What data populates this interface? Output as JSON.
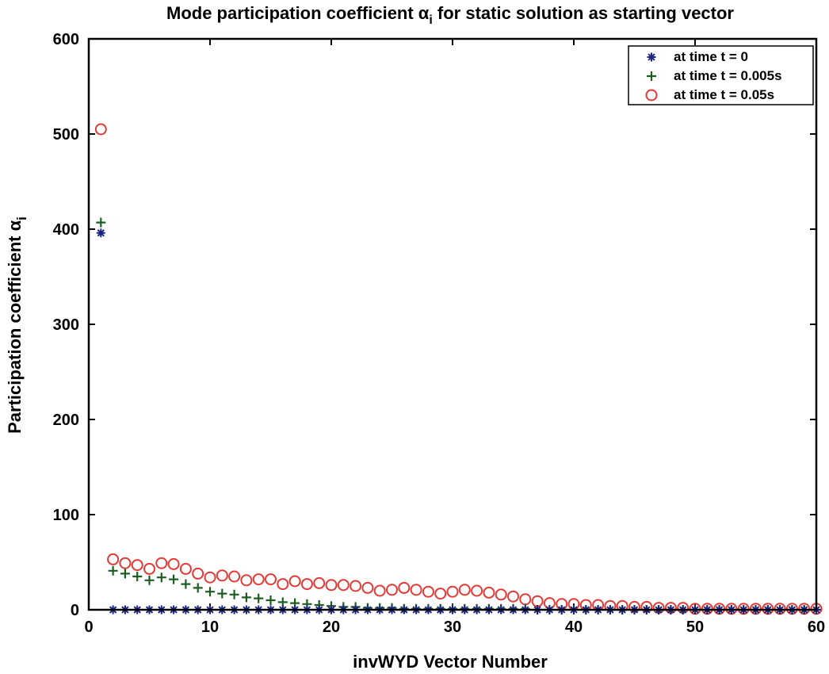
{
  "chart_data": {
    "type": "scatter",
    "title_prefix": "Mode participation coefficient α",
    "title_sub": "i",
    "title_suffix": " for static solution as starting vector",
    "xlabel": "invWYD Vector Number",
    "ylabel_main": "Participation coefficient α",
    "ylabel_sub": "i",
    "xlim": [
      0,
      60
    ],
    "ylim": [
      0,
      600
    ],
    "xticks": [
      0,
      10,
      20,
      30,
      40,
      50,
      60
    ],
    "yticks": [
      0,
      100,
      200,
      300,
      400,
      500,
      600
    ],
    "legend_position": "top-right",
    "series": [
      {
        "name": "at time t = 0",
        "marker": "asterisk",
        "color": "#1a237e",
        "x": [
          1,
          2,
          3,
          4,
          5,
          6,
          7,
          8,
          9,
          10,
          11,
          12,
          13,
          14,
          15,
          16,
          17,
          18,
          19,
          20,
          21,
          22,
          23,
          24,
          25,
          26,
          27,
          28,
          29,
          30,
          31,
          32,
          33,
          34,
          35,
          36,
          37,
          38,
          39,
          40,
          41,
          42,
          43,
          44,
          45,
          46,
          47,
          48,
          49,
          50,
          51,
          52,
          53,
          54,
          55,
          56,
          57,
          58,
          59,
          60
        ],
        "y": [
          396,
          0,
          0,
          0,
          0,
          0,
          0,
          0,
          0,
          0,
          0,
          0,
          0,
          0,
          0,
          0,
          0,
          0,
          0,
          0,
          0,
          0,
          0,
          0,
          0,
          0,
          0,
          0,
          0,
          0,
          0,
          0,
          0,
          0,
          0,
          0,
          0,
          0,
          0,
          0,
          0,
          0,
          0,
          0,
          0,
          0,
          0,
          0,
          0,
          0,
          0,
          0,
          0,
          0,
          0,
          0,
          0,
          0,
          0,
          0
        ]
      },
      {
        "name": "at time t = 0.005s",
        "marker": "plus",
        "color": "#1b5e20",
        "x": [
          1,
          2,
          3,
          4,
          5,
          6,
          7,
          8,
          9,
          10,
          11,
          12,
          13,
          14,
          15,
          16,
          17,
          18,
          19,
          20,
          21,
          22,
          23,
          24,
          25,
          26,
          27,
          28,
          29,
          30,
          31,
          32,
          33,
          34,
          35,
          36,
          37,
          38,
          39,
          40,
          41,
          42,
          43,
          44,
          45,
          46,
          47,
          48,
          49,
          50,
          51,
          52,
          53,
          54,
          55,
          56,
          57,
          58,
          59,
          60
        ],
        "y": [
          407,
          41,
          38,
          35,
          31,
          34,
          32,
          27,
          23,
          19,
          17,
          16,
          13,
          12,
          10,
          8,
          7,
          6,
          5,
          4,
          3,
          3,
          2,
          2,
          2,
          1,
          1,
          1,
          1,
          1,
          1,
          1,
          1,
          1,
          1,
          1,
          0,
          0,
          0,
          0,
          0,
          0,
          0,
          0,
          0,
          0,
          0,
          0,
          0,
          0,
          0,
          0,
          0,
          0,
          0,
          0,
          0,
          0,
          0,
          0
        ]
      },
      {
        "name": "at time t = 0.05s",
        "marker": "circle",
        "color": "#e53935",
        "x": [
          1,
          2,
          3,
          4,
          5,
          6,
          7,
          8,
          9,
          10,
          11,
          12,
          13,
          14,
          15,
          16,
          17,
          18,
          19,
          20,
          21,
          22,
          23,
          24,
          25,
          26,
          27,
          28,
          29,
          30,
          31,
          32,
          33,
          34,
          35,
          36,
          37,
          38,
          39,
          40,
          41,
          42,
          43,
          44,
          45,
          46,
          47,
          48,
          49,
          50,
          51,
          52,
          53,
          54,
          55,
          56,
          57,
          58,
          59,
          60
        ],
        "y": [
          505,
          53,
          49,
          47,
          43,
          49,
          48,
          43,
          38,
          34,
          36,
          35,
          31,
          32,
          32,
          27,
          30,
          27,
          28,
          26,
          26,
          25,
          23,
          20,
          21,
          23,
          21,
          19,
          17,
          19,
          21,
          20,
          18,
          16,
          14,
          11,
          9,
          7,
          6,
          6,
          5,
          5,
          4,
          4,
          3,
          3,
          2,
          2,
          2,
          1,
          1,
          1,
          1,
          1,
          1,
          1,
          1,
          1,
          1,
          1
        ]
      }
    ]
  }
}
